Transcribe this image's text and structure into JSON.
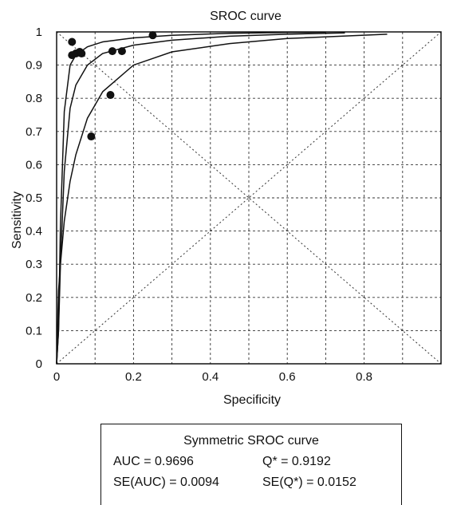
{
  "chart_data": {
    "type": "scatter",
    "title": "SROC curve",
    "xlabel": "Specificity",
    "ylabel": "Sensitivity",
    "xlim": [
      0,
      1
    ],
    "ylim": [
      0,
      1
    ],
    "x_ticks": [
      "0",
      "0.2",
      "0.4",
      "0.6",
      "0.8"
    ],
    "x_tick_values": [
      0,
      0.2,
      0.4,
      0.6,
      0.8
    ],
    "y_ticks": [
      "0",
      "0.1",
      "0.2",
      "0.3",
      "0.4",
      "0.5",
      "0.6",
      "0.7",
      "0.8",
      "0.9",
      "1"
    ],
    "y_tick_values": [
      0,
      0.1,
      0.2,
      0.3,
      0.4,
      0.5,
      0.6,
      0.7,
      0.8,
      0.9,
      1.0
    ],
    "grid": true,
    "points": [
      {
        "x": 0.04,
        "y": 0.97
      },
      {
        "x": 0.04,
        "y": 0.93
      },
      {
        "x": 0.05,
        "y": 0.935
      },
      {
        "x": 0.06,
        "y": 0.94
      },
      {
        "x": 0.065,
        "y": 0.935
      },
      {
        "x": 0.09,
        "y": 0.685
      },
      {
        "x": 0.14,
        "y": 0.81
      },
      {
        "x": 0.145,
        "y": 0.942
      },
      {
        "x": 0.17,
        "y": 0.942
      },
      {
        "x": 0.25,
        "y": 0.99
      }
    ],
    "curves": [
      {
        "x": [
          0.005,
          0.01,
          0.02,
          0.035,
          0.05,
          0.08,
          0.12,
          0.2,
          0.3,
          0.45,
          0.6,
          0.7
        ],
        "y": [
          0.1,
          0.42,
          0.76,
          0.9,
          0.93,
          0.955,
          0.97,
          0.982,
          0.99,
          0.996,
          0.998,
          0.999
        ]
      },
      {
        "x": [
          0.005,
          0.01,
          0.02,
          0.035,
          0.05,
          0.08,
          0.12,
          0.2,
          0.3,
          0.45,
          0.6,
          0.75
        ],
        "y": [
          0.1,
          0.3,
          0.58,
          0.77,
          0.84,
          0.9,
          0.935,
          0.96,
          0.975,
          0.987,
          0.993,
          0.997
        ]
      },
      {
        "x": [
          0.005,
          0.01,
          0.02,
          0.035,
          0.05,
          0.08,
          0.12,
          0.2,
          0.3,
          0.45,
          0.6,
          0.86
        ],
        "y": [
          0.22,
          0.3,
          0.43,
          0.55,
          0.63,
          0.74,
          0.82,
          0.9,
          0.94,
          0.965,
          0.98,
          0.993
        ]
      }
    ],
    "reference_lines": [
      "diagonal",
      "anti-diagonal"
    ],
    "summary": {
      "title": "Symmetric SROC curve",
      "auc": "AUC = 0.9696",
      "q_star": "Q* = 0.9192",
      "se_auc": "SE(AUC) = 0.0094",
      "se_q": "SE(Q*) =  0.0152"
    }
  }
}
